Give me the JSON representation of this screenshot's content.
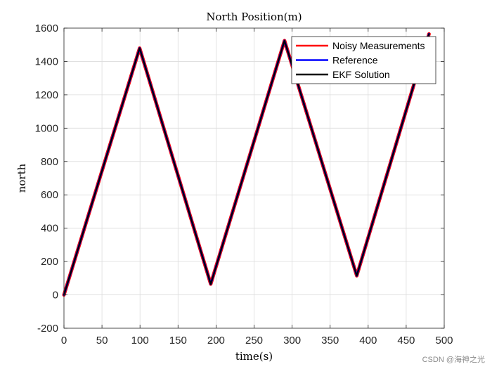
{
  "chart_data": {
    "type": "line",
    "title": "North Position(m)",
    "xlabel": "time(s)",
    "ylabel": "north",
    "xlim": [
      0,
      500
    ],
    "ylim": [
      -200,
      1600
    ],
    "xticks": [
      0,
      50,
      100,
      150,
      200,
      250,
      300,
      350,
      400,
      450,
      500
    ],
    "yticks": [
      -200,
      0,
      200,
      400,
      600,
      800,
      1000,
      1200,
      1400,
      1600
    ],
    "grid": true,
    "legend_position": "top-right",
    "series": [
      {
        "name": "Noisy Measurements",
        "color": "#ff0000",
        "x": [
          0,
          99.5,
          193,
          290,
          385,
          480
        ],
        "y": [
          0,
          1480,
          65,
          1525,
          115,
          1565
        ]
      },
      {
        "name": "Reference",
        "color": "#0000ff",
        "x": [
          0,
          99.5,
          193,
          290,
          385,
          480
        ],
        "y": [
          0,
          1480,
          65,
          1525,
          115,
          1565
        ]
      },
      {
        "name": "EKF Solution",
        "color": "#000000",
        "x": [
          0,
          99.5,
          193,
          290,
          385,
          480
        ],
        "y": [
          0,
          1480,
          65,
          1525,
          115,
          1565
        ]
      }
    ]
  },
  "watermark": "CSDN @海神之光"
}
